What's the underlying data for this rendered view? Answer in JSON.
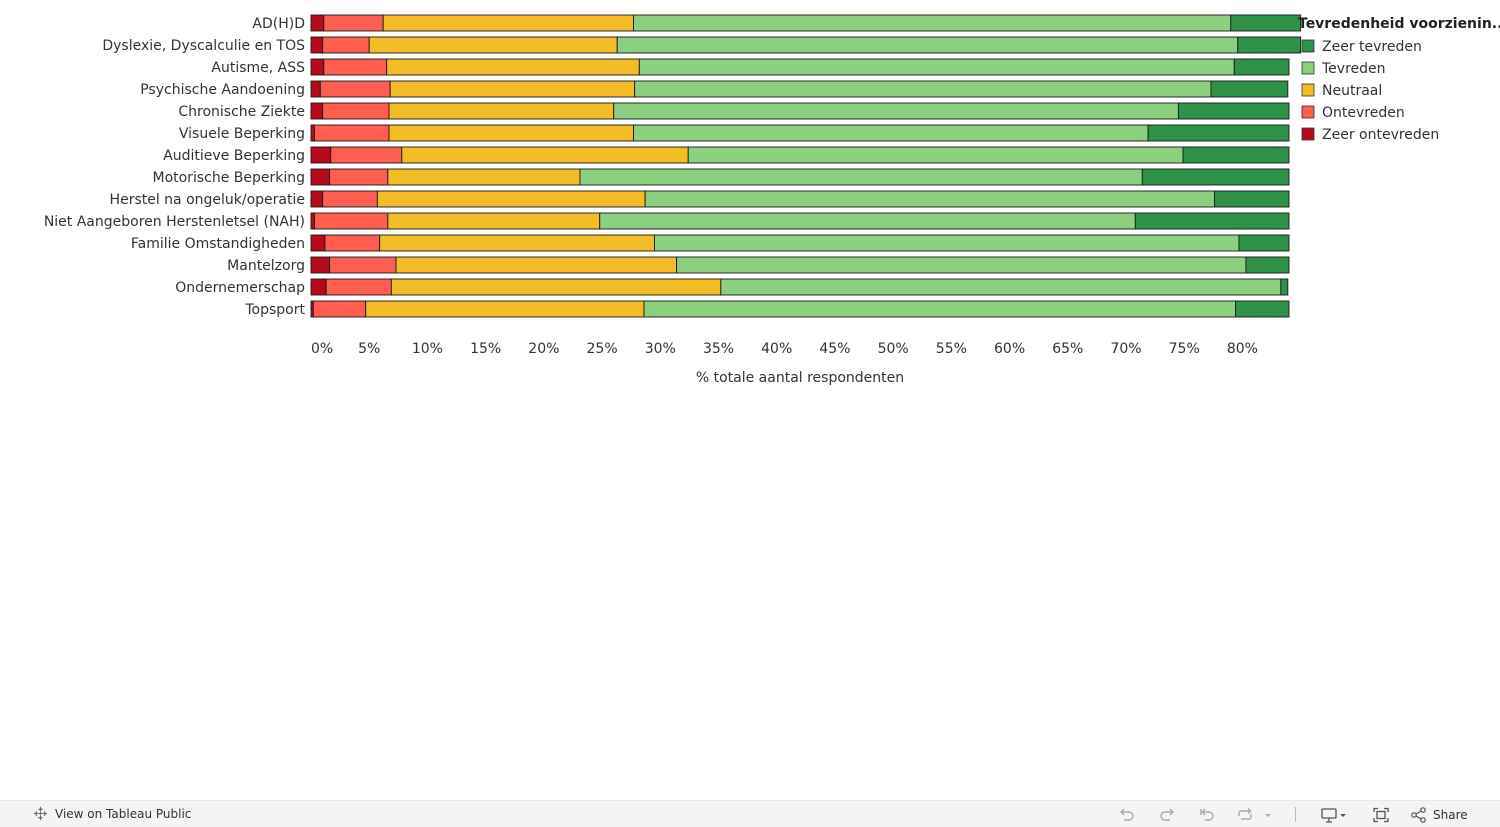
{
  "chart_data": {
    "type": "stacked-bar-horizontal",
    "title": "",
    "xlabel": "% totale aantal respondenten",
    "ylabel": "",
    "xlim": [
      0,
      84
    ],
    "x_ticks": [
      "0%",
      "5%",
      "10%",
      "15%",
      "20%",
      "25%",
      "30%",
      "35%",
      "40%",
      "45%",
      "50%",
      "55%",
      "60%",
      "65%",
      "70%",
      "75%",
      "80%"
    ],
    "legend_title": "Tevredenheid voorzienin...",
    "legend_position": "right",
    "categories": [
      "AD(H)D",
      "Dyslexie, Dyscalculie en TOS",
      "Autisme, ASS",
      "Psychische Aandoening",
      "Chronische Ziekte",
      "Visuele Beperking",
      "Auditieve Beperking",
      "Motorische Beperking",
      "Herstel na ongeluk/operatie",
      "Niet Aangeboren Herstenletsel (NAH)",
      "Familie Omstandigheden",
      "Mantelzorg",
      "Ondernemerschap",
      "Topsport"
    ],
    "series": [
      {
        "name": "Zeer ontevreden",
        "color": "#b60a1c",
        "values": [
          1.1,
          1.0,
          1.1,
          0.8,
          1.0,
          0.3,
          1.7,
          1.6,
          1.0,
          0.3,
          1.2,
          1.6,
          1.3,
          0.2
        ]
      },
      {
        "name": "Ontevreden",
        "color": "#ff5d50",
        "values": [
          5.1,
          4.0,
          5.4,
          6.0,
          5.7,
          6.4,
          6.1,
          5.0,
          4.7,
          6.3,
          4.7,
          5.7,
          5.6,
          4.5
        ]
      },
      {
        "name": "Neutraal",
        "color": "#f2bd24",
        "values": [
          21.5,
          21.3,
          21.7,
          21.0,
          19.3,
          21.0,
          24.6,
          16.5,
          23.0,
          18.2,
          23.6,
          24.1,
          28.3,
          23.9
        ]
      },
      {
        "name": "Tevreden",
        "color": "#8ccf7e",
        "values": [
          51.3,
          53.3,
          51.1,
          49.5,
          48.5,
          44.2,
          42.5,
          48.3,
          48.9,
          46.0,
          50.2,
          48.9,
          48.1,
          50.8
        ]
      },
      {
        "name": "Zeer tevreden",
        "color": "#2e9249",
        "values": [
          6.0,
          5.4,
          4.7,
          6.6,
          9.5,
          12.1,
          9.1,
          12.6,
          6.4,
          13.2,
          4.3,
          3.7,
          0.6,
          4.6
        ]
      }
    ],
    "legend_order": [
      "Zeer tevreden",
      "Tevreden",
      "Neutraal",
      "Ontevreden",
      "Zeer ontevreden"
    ]
  },
  "footer": {
    "view_link": "View on Tableau Public",
    "share_label": "Share"
  }
}
